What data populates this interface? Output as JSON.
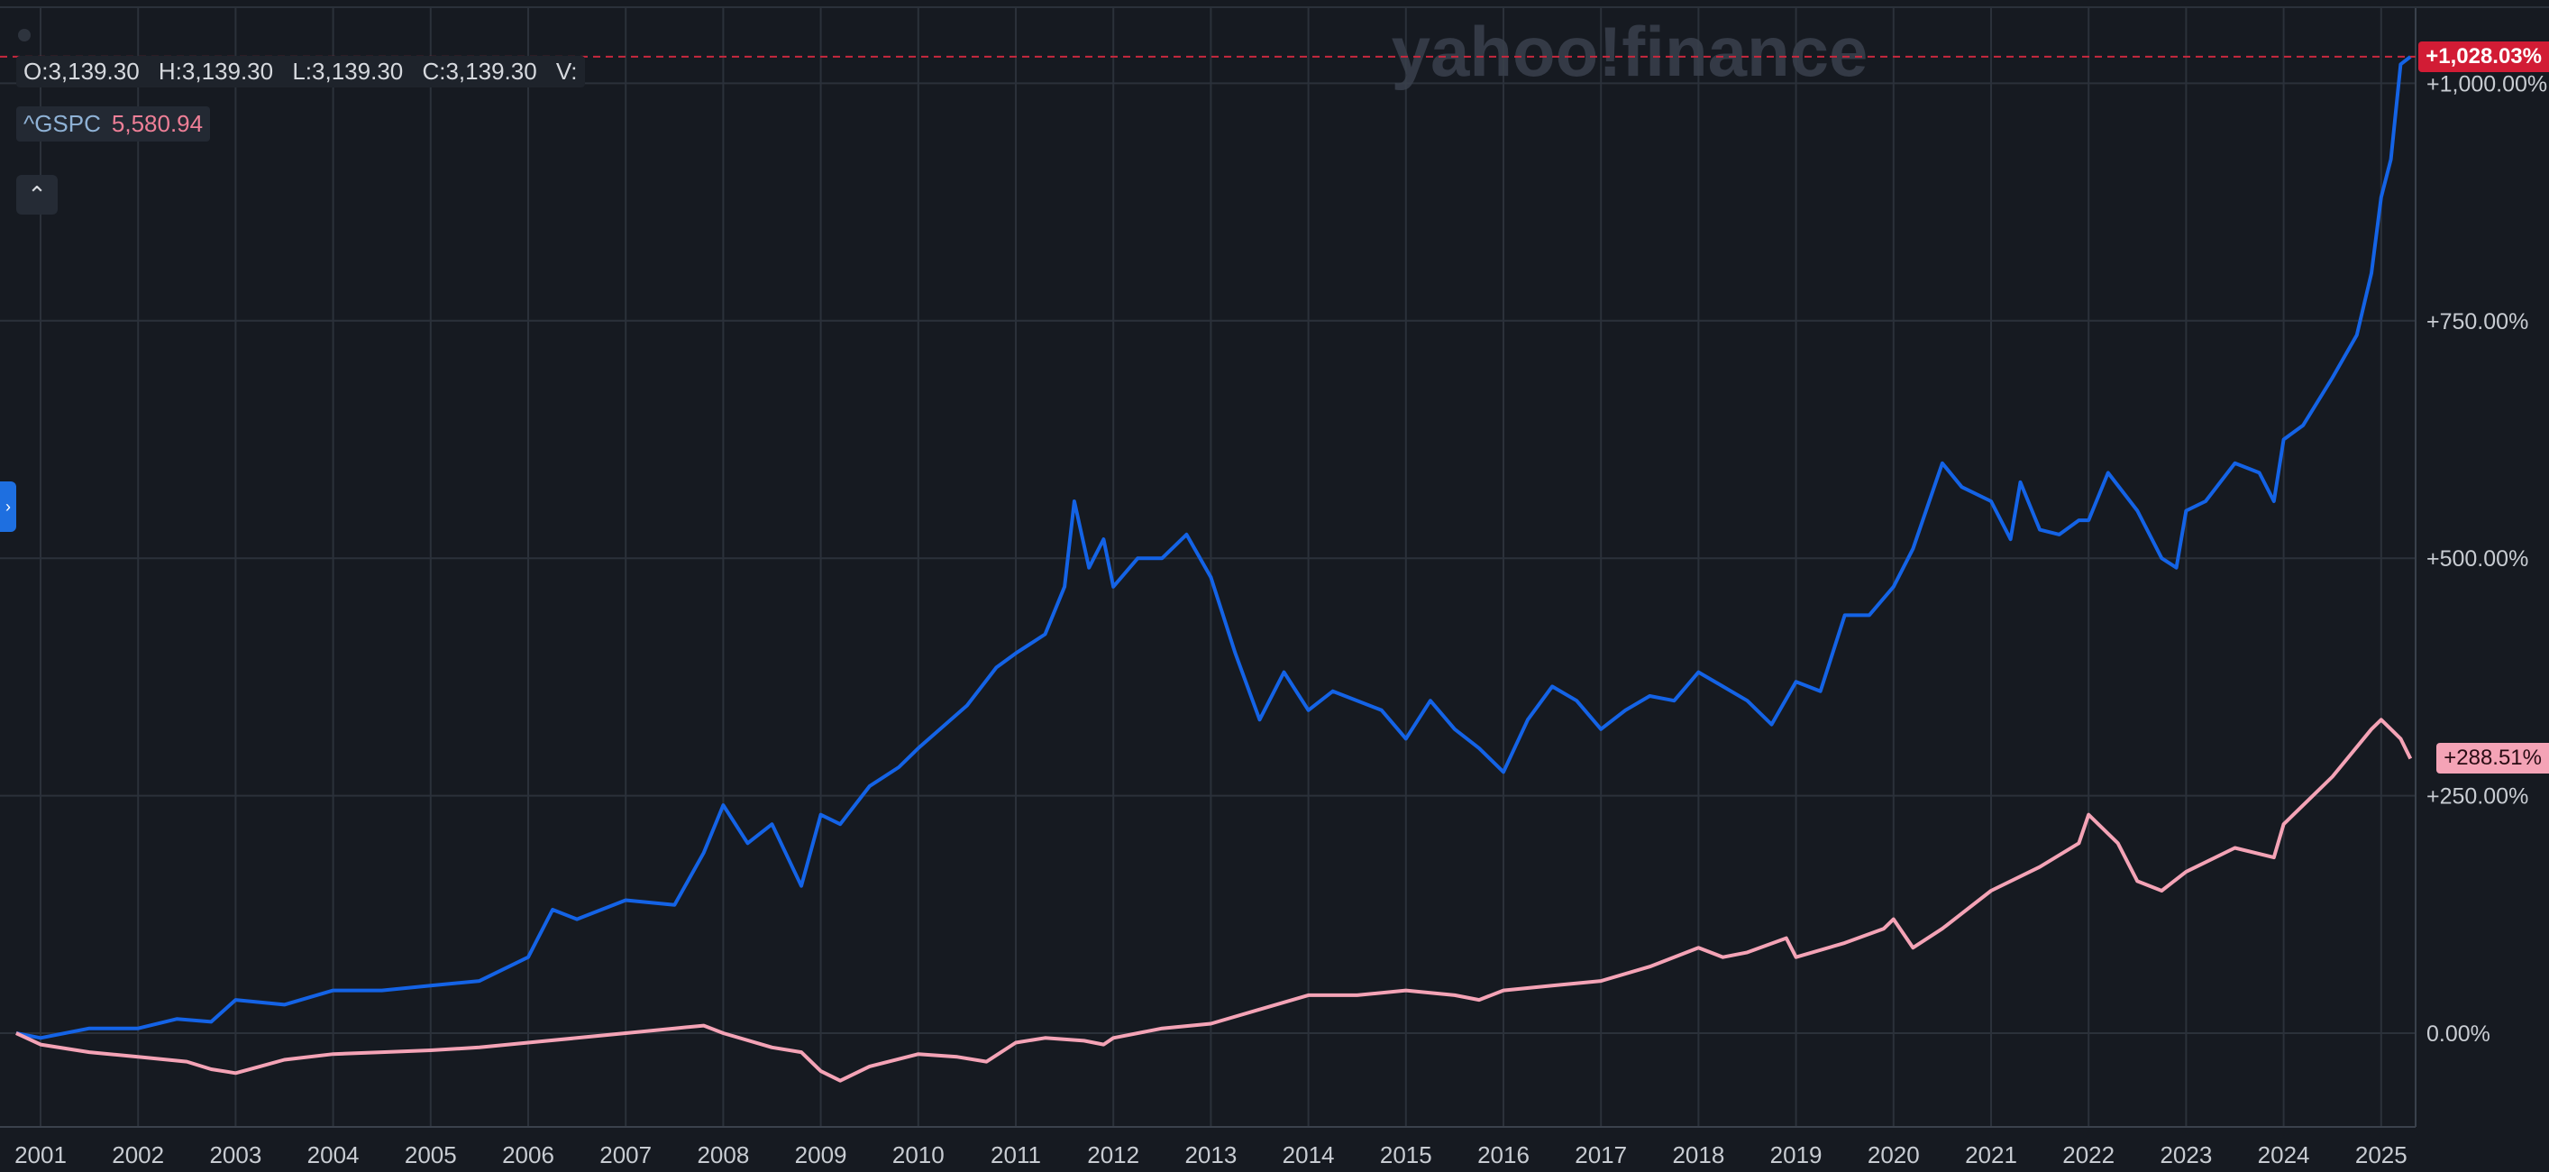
{
  "watermark": "yahoo!finance",
  "ohlc": {
    "open": "O:3,139.30",
    "high": "H:3,139.30",
    "low": "L:3,139.30",
    "close": "C:3,139.30",
    "volume": "V:"
  },
  "legend": {
    "symbol": "^GSPC",
    "value": "5,580.94",
    "collapse_icon": "chevron-up-icon"
  },
  "badges": {
    "blue": "+1,028.03%",
    "pink": "+288.51%"
  },
  "colors": {
    "background": "#161a21",
    "grid": "#2b313a",
    "blue_series": "#1463e6",
    "pink_series": "#f4a3b6",
    "axis_text": "#c8ccd2",
    "badge_red": "#d21c35"
  },
  "chart_data": {
    "type": "line",
    "y_unit": "percent change",
    "ylim": [
      -100,
      1100
    ],
    "y_ticks": [
      0,
      250,
      500,
      750,
      1000
    ],
    "y_tick_labels": [
      "0.00%",
      "+250.00%",
      "+500.00%",
      "+750.00%",
      "+1,000.00%"
    ],
    "x_ticks": [
      "2001",
      "2002",
      "2003",
      "2004",
      "2005",
      "2006",
      "2007",
      "2008",
      "2009",
      "2010",
      "2011",
      "2012",
      "2013",
      "2014",
      "2015",
      "2016",
      "2017",
      "2018",
      "2019",
      "2020",
      "2021",
      "2022",
      "2023",
      "2024",
      "2025"
    ],
    "grid": true,
    "series": [
      {
        "color": "#1463e6",
        "last_label": "+1,028.03%",
        "x": [
          2000.75,
          2001.0,
          2001.5,
          2002.0,
          2002.4,
          2002.75,
          2003.0,
          2003.5,
          2004.0,
          2004.5,
          2005.0,
          2005.5,
          2006.0,
          2006.25,
          2006.5,
          2007.0,
          2007.5,
          2007.8,
          2008.0,
          2008.25,
          2008.5,
          2008.8,
          2009.0,
          2009.2,
          2009.5,
          2009.8,
          2010.0,
          2010.5,
          2010.8,
          2011.0,
          2011.3,
          2011.5,
          2011.6,
          2011.75,
          2011.9,
          2012.0,
          2012.25,
          2012.5,
          2012.75,
          2013.0,
          2013.25,
          2013.5,
          2013.75,
          2014.0,
          2014.25,
          2014.5,
          2014.75,
          2015.0,
          2015.25,
          2015.5,
          2015.75,
          2016.0,
          2016.25,
          2016.5,
          2016.75,
          2017.0,
          2017.25,
          2017.5,
          2017.75,
          2018.0,
          2018.25,
          2018.5,
          2018.75,
          2019.0,
          2019.25,
          2019.5,
          2019.75,
          2020.0,
          2020.2,
          2020.5,
          2020.7,
          2021.0,
          2021.2,
          2021.3,
          2021.5,
          2021.7,
          2021.9,
          2022.0,
          2022.2,
          2022.5,
          2022.75,
          2022.9,
          2023.0,
          2023.2,
          2023.5,
          2023.75,
          2023.9,
          2024.0,
          2024.2,
          2024.5,
          2024.75,
          2024.9,
          2025.0,
          2025.1,
          2025.2,
          2025.3
        ],
        "y": [
          0,
          -5,
          5,
          5,
          15,
          12,
          35,
          30,
          45,
          45,
          50,
          55,
          80,
          130,
          120,
          140,
          135,
          190,
          240,
          200,
          220,
          155,
          230,
          220,
          260,
          280,
          300,
          345,
          385,
          400,
          420,
          470,
          560,
          490,
          520,
          470,
          500,
          500,
          525,
          480,
          400,
          330,
          380,
          340,
          360,
          350,
          340,
          310,
          350,
          320,
          300,
          275,
          330,
          365,
          350,
          320,
          340,
          355,
          350,
          380,
          365,
          350,
          325,
          370,
          360,
          440,
          440,
          470,
          510,
          600,
          575,
          560,
          520,
          580,
          530,
          525,
          540,
          540,
          590,
          550,
          500,
          490,
          550,
          560,
          600,
          590,
          560,
          625,
          640,
          690,
          735,
          800,
          880,
          920,
          1020,
          1028
        ]
      },
      {
        "color": "#f4a3b6",
        "last_label": "+288.51%",
        "x": [
          2000.75,
          2001.0,
          2001.5,
          2002.0,
          2002.5,
          2002.75,
          2003.0,
          2003.25,
          2003.5,
          2004.0,
          2004.5,
          2005.0,
          2005.5,
          2006.0,
          2006.5,
          2007.0,
          2007.5,
          2007.8,
          2008.0,
          2008.5,
          2008.8,
          2009.0,
          2009.2,
          2009.5,
          2010.0,
          2010.4,
          2010.7,
          2011.0,
          2011.3,
          2011.7,
          2011.9,
          2012.0,
          2012.5,
          2013.0,
          2013.5,
          2014.0,
          2014.5,
          2015.0,
          2015.5,
          2015.75,
          2016.0,
          2016.5,
          2017.0,
          2017.5,
          2018.0,
          2018.25,
          2018.5,
          2018.9,
          2019.0,
          2019.5,
          2019.9,
          2020.0,
          2020.2,
          2020.5,
          2021.0,
          2021.5,
          2021.9,
          2022.0,
          2022.3,
          2022.5,
          2022.75,
          2023.0,
          2023.5,
          2023.9,
          2024.0,
          2024.5,
          2024.9,
          2025.0,
          2025.1,
          2025.2,
          2025.3
        ],
        "y": [
          0,
          -12,
          -20,
          -25,
          -30,
          -38,
          -42,
          -35,
          -28,
          -22,
          -20,
          -18,
          -15,
          -10,
          -5,
          0,
          5,
          8,
          0,
          -15,
          -20,
          -40,
          -50,
          -35,
          -22,
          -25,
          -30,
          -10,
          -5,
          -8,
          -12,
          -5,
          5,
          10,
          25,
          40,
          40,
          45,
          40,
          35,
          45,
          50,
          55,
          70,
          90,
          80,
          85,
          100,
          80,
          95,
          110,
          120,
          90,
          110,
          150,
          175,
          200,
          230,
          200,
          160,
          150,
          170,
          195,
          185,
          220,
          270,
          320,
          330,
          320,
          310,
          289
        ]
      }
    ]
  }
}
